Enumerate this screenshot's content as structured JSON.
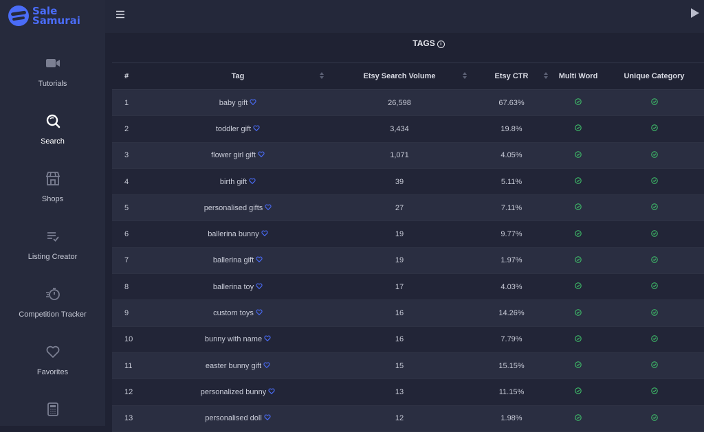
{
  "brand": {
    "line1": "Sale",
    "line2": "Samurai",
    "accent": "#4a6cf7"
  },
  "sidebar": {
    "items": [
      {
        "label": "Tutorials",
        "icon": "video-camera-icon"
      },
      {
        "label": "Search",
        "icon": "search-icon",
        "active": true
      },
      {
        "label": "Shops",
        "icon": "store-icon"
      },
      {
        "label": "Listing Creator",
        "icon": "listing-icon"
      },
      {
        "label": "Competition Tracker",
        "icon": "stopwatch-icon"
      },
      {
        "label": "Favorites",
        "icon": "heart-icon"
      },
      {
        "label": "",
        "icon": "calculator-icon"
      }
    ]
  },
  "panel": {
    "title": "TAGS"
  },
  "table": {
    "headers": [
      "#",
      "Tag",
      "Etsy Search Volume",
      "Etsy CTR",
      "Multi Word",
      "Unique Category"
    ],
    "rows": [
      {
        "n": "1",
        "tag": "baby gift",
        "volume": "26,598",
        "ctr": "67.63%"
      },
      {
        "n": "2",
        "tag": "toddler gift",
        "volume": "3,434",
        "ctr": "19.8%"
      },
      {
        "n": "3",
        "tag": "flower girl gift",
        "volume": "1,071",
        "ctr": "4.05%"
      },
      {
        "n": "4",
        "tag": "birth gift",
        "volume": "39",
        "ctr": "5.11%"
      },
      {
        "n": "5",
        "tag": "personalised gifts",
        "volume": "27",
        "ctr": "7.11%"
      },
      {
        "n": "6",
        "tag": "ballerina bunny",
        "volume": "19",
        "ctr": "9.77%"
      },
      {
        "n": "7",
        "tag": "ballerina gift",
        "volume": "19",
        "ctr": "1.97%"
      },
      {
        "n": "8",
        "tag": "ballerina toy",
        "volume": "17",
        "ctr": "4.03%"
      },
      {
        "n": "9",
        "tag": "custom toys",
        "volume": "16",
        "ctr": "14.26%"
      },
      {
        "n": "10",
        "tag": "bunny with name",
        "volume": "16",
        "ctr": "7.79%"
      },
      {
        "n": "11",
        "tag": "easter bunny gift",
        "volume": "15",
        "ctr": "15.15%"
      },
      {
        "n": "12",
        "tag": "personalized bunny",
        "volume": "13",
        "ctr": "11.15%"
      },
      {
        "n": "13",
        "tag": "personalised doll",
        "volume": "12",
        "ctr": "1.98%"
      }
    ]
  }
}
